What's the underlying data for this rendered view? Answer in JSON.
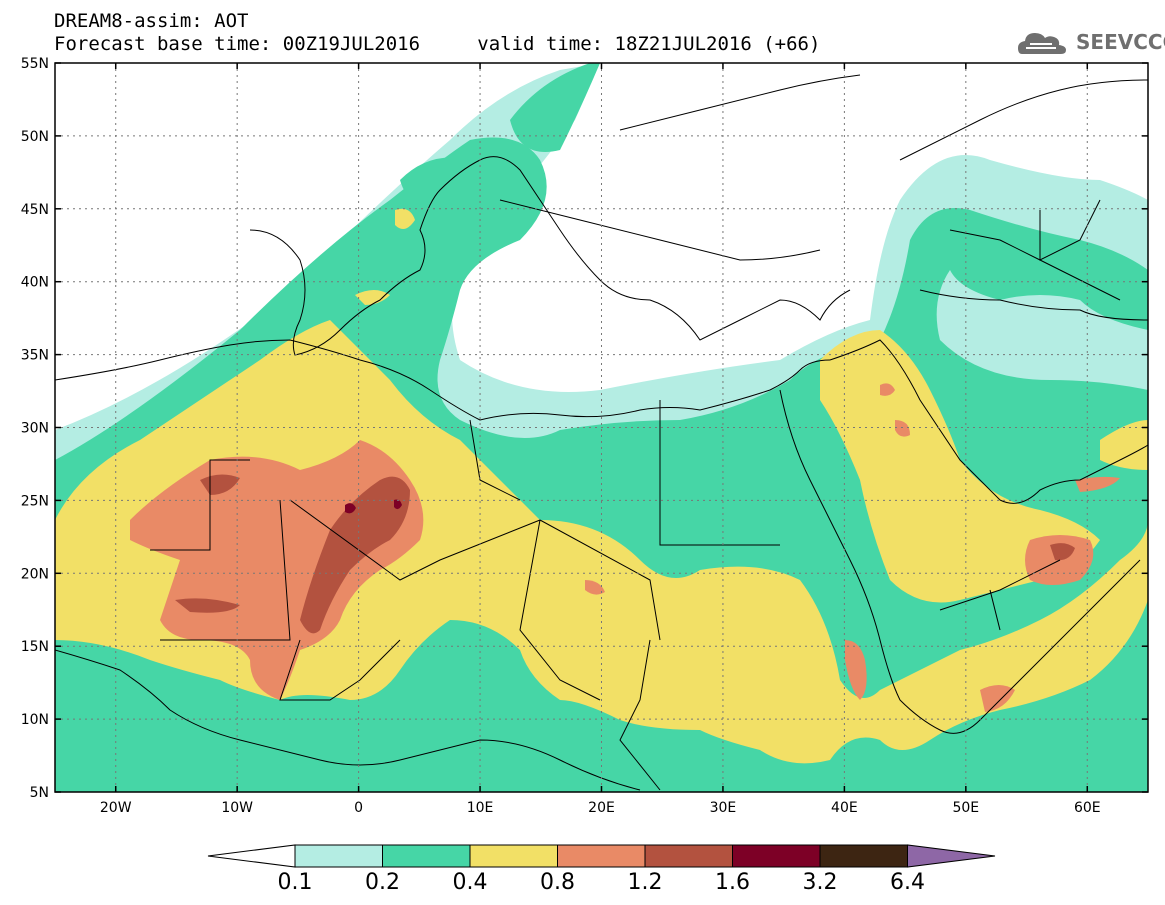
{
  "header": {
    "title_line1": "DREAM8-assim: AOT",
    "title_line2_left": "Forecast base time: 00Z19JUL2016",
    "title_line2_right": "valid time: 18Z21JUL2016 (+66)",
    "logo_text": "SEEVCCC"
  },
  "map": {
    "lon_ticks": [
      {
        "value": -20,
        "label": "20W"
      },
      {
        "value": -10,
        "label": "10W"
      },
      {
        "value": 0,
        "label": "0"
      },
      {
        "value": 10,
        "label": "10E"
      },
      {
        "value": 20,
        "label": "20E"
      },
      {
        "value": 30,
        "label": "30E"
      },
      {
        "value": 40,
        "label": "40E"
      },
      {
        "value": 50,
        "label": "50E"
      },
      {
        "value": 60,
        "label": "60E"
      }
    ],
    "lat_ticks": [
      {
        "value": 55,
        "label": "55N"
      },
      {
        "value": 50,
        "label": "50N"
      },
      {
        "value": 45,
        "label": "45N"
      },
      {
        "value": 40,
        "label": "40N"
      },
      {
        "value": 35,
        "label": "35N"
      },
      {
        "value": 30,
        "label": "30N"
      },
      {
        "value": 25,
        "label": "25N"
      },
      {
        "value": 20,
        "label": "20N"
      },
      {
        "value": 15,
        "label": "15N"
      },
      {
        "value": 10,
        "label": "10N"
      },
      {
        "value": 5,
        "label": "5N"
      }
    ],
    "lon_range": [
      -25,
      65
    ],
    "lat_range": [
      5,
      55
    ]
  },
  "colorbar": {
    "levels": [
      "0.1",
      "0.2",
      "0.4",
      "0.8",
      "1.2",
      "1.6",
      "3.2",
      "6.4"
    ],
    "colors": [
      "#b4ede3",
      "#46d6a6",
      "#f2e066",
      "#e98a66",
      "#b3523f",
      "#7d0026",
      "#3d2512",
      "#8e67a6"
    ],
    "under_color": "#ffffff"
  }
}
